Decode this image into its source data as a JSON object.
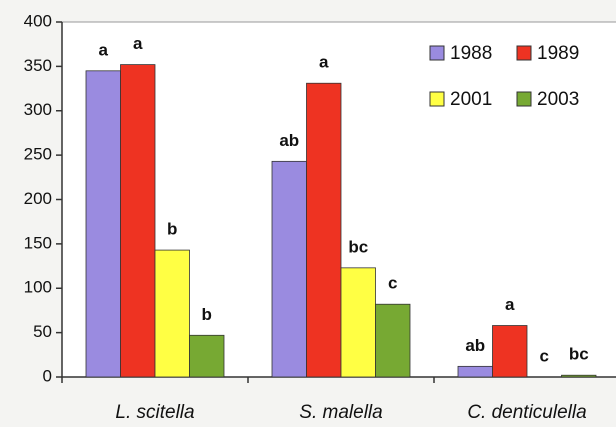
{
  "chart_data": {
    "type": "bar",
    "categories": [
      "L. scitella",
      "S. malella",
      "C. denticulella"
    ],
    "series": [
      {
        "name": "1988",
        "color": "#9a8be0",
        "values": [
          345,
          243,
          12
        ],
        "annotations": [
          "a",
          "ab",
          "ab"
        ]
      },
      {
        "name": "1989",
        "color": "#ee3322",
        "values": [
          352,
          331,
          58
        ],
        "annotations": [
          "a",
          "a",
          "a"
        ]
      },
      {
        "name": "2001",
        "color": "#ffff44",
        "values": [
          143,
          123,
          0
        ],
        "annotations": [
          "b",
          "bc",
          "c"
        ]
      },
      {
        "name": "2003",
        "color": "#77a933",
        "values": [
          47,
          82,
          2
        ],
        "annotations": [
          "b",
          "c",
          "bc"
        ]
      }
    ],
    "ylim": [
      0,
      400
    ],
    "yticks": [
      0,
      50,
      100,
      150,
      200,
      250,
      300,
      350,
      400
    ],
    "grid": false,
    "legend": "upper right"
  }
}
